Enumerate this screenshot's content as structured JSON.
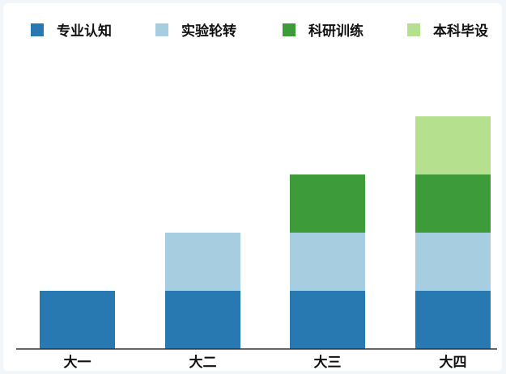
{
  "chart_data": {
    "type": "bar",
    "stacked": true,
    "categories": [
      "大一",
      "大二",
      "大三",
      "大四"
    ],
    "series": [
      {
        "name": "专业认知",
        "color": "#2878b2",
        "values": [
          1,
          1,
          1,
          1
        ]
      },
      {
        "name": "实验轮转",
        "color": "#a7cde0",
        "values": [
          0,
          1,
          1,
          1
        ]
      },
      {
        "name": "科研训练",
        "color": "#3d9c39",
        "values": [
          0,
          0,
          1,
          1
        ]
      },
      {
        "name": "本科毕设",
        "color": "#b5e08d",
        "values": [
          0,
          0,
          0,
          1
        ]
      }
    ],
    "ylim": [
      0,
      5
    ],
    "legend_position": "top",
    "grid": false
  }
}
